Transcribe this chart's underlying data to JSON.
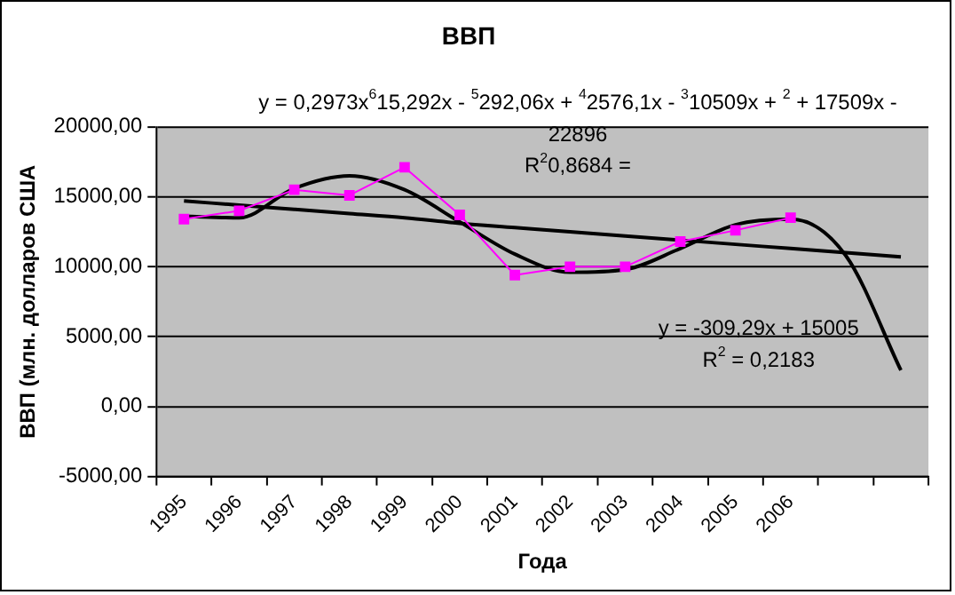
{
  "chart_data": {
    "type": "line",
    "title": "ВВП",
    "xlabel": "Года",
    "ylabel": "ВВП (млн. долларов США",
    "categories": [
      "1995",
      "1996",
      "1997",
      "1998",
      "1999",
      "2000",
      "2001",
      "2002",
      "2003",
      "2004",
      "2005",
      "2006",
      null,
      null
    ],
    "series": [
      {
        "color": "#ff00ff",
        "marker": "square",
        "values": [
          13400,
          14000,
          15500,
          15100,
          17100,
          13700,
          9400,
          10000,
          10000,
          11800,
          12600,
          13500,
          null,
          null
        ]
      },
      {
        "color": "#000000",
        "marker": "none",
        "values": [
          14700,
          14400,
          14100,
          13800,
          13500,
          13100,
          12800,
          12500,
          12200,
          11900,
          11600,
          11300,
          11000,
          10700
        ]
      },
      {
        "color": "#000000",
        "marker": "none",
        "values": [
          13600,
          13500,
          15600,
          16500,
          15500,
          13200,
          10900,
          9600,
          9800,
          11300,
          13000,
          13400,
          10800,
          2600
        ]
      }
    ],
    "ylim": [
      -5000,
      20000
    ],
    "yticks": [
      {
        "value": -5000,
        "label": "-5000,00"
      },
      {
        "value": 0,
        "label": "0,00"
      },
      {
        "value": 5000,
        "label": "5000,00"
      },
      {
        "value": 10000,
        "label": "10000,00"
      },
      {
        "value": 15000,
        "label": "15000,00"
      },
      {
        "value": 20000,
        "label": "20000,00"
      }
    ],
    "grid": "y",
    "legend": false,
    "annotations": [
      "y = 0,2973x$^{6}$15,292x - $^{5}$292,06x + $^{4}$2576,1x - $^{3}$10509x + $^{2}$ + 17509x - 22896",
      "R$^{2}$0,8684 =",
      "y = -309,29x + 15005",
      "R$^{2}$ = 0,2183"
    ]
  }
}
